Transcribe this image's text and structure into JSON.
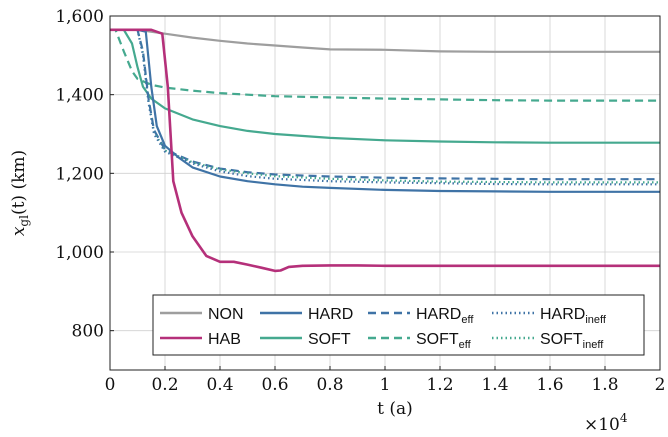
{
  "chart_data": {
    "type": "line",
    "xlabel": "t (a)",
    "ylabel": "x_gl(t) (km)",
    "x_multiplier_label": "×10",
    "x_multiplier_exp": "4",
    "xlim": [
      0,
      20000
    ],
    "ylim": [
      700,
      1600
    ],
    "grid": true,
    "legend_position": "bottom-center",
    "x_ticks": [
      0,
      2000,
      4000,
      6000,
      8000,
      10000,
      12000,
      14000,
      16000,
      18000,
      20000
    ],
    "x_tick_labels": [
      "0",
      "0.2",
      "0.4",
      "0.6",
      "0.8",
      "1",
      "1.2",
      "1.4",
      "1.6",
      "1.8",
      "2"
    ],
    "y_ticks": [
      800,
      1000,
      1200,
      1400,
      1600
    ],
    "y_tick_labels": [
      "800",
      "1,000",
      "1,200",
      "1,400",
      "1,600"
    ],
    "series": [
      {
        "name": "NON",
        "color": "#9e9e9e",
        "style": "solid",
        "x": [
          0,
          1000,
          2000,
          3000,
          4000,
          5000,
          6000,
          7000,
          8000,
          10000,
          12000,
          14000,
          16000,
          18000,
          20000
        ],
        "y": [
          1565,
          1565,
          1555,
          1545,
          1537,
          1530,
          1525,
          1520,
          1515,
          1514,
          1510,
          1509,
          1509,
          1509,
          1509
        ]
      },
      {
        "name": "HAB",
        "color": "#b5307a",
        "style": "solid",
        "x": [
          0,
          1000,
          1500,
          1900,
          2100,
          2300,
          2600,
          3000,
          3500,
          4000,
          4500,
          5000,
          5500,
          6000,
          6200,
          6500,
          7000,
          8000,
          9000,
          10000,
          12000,
          14000,
          16000,
          18000,
          20000
        ],
        "y": [
          1565,
          1565,
          1565,
          1555,
          1420,
          1180,
          1100,
          1040,
          990,
          975,
          975,
          968,
          960,
          952,
          953,
          962,
          965,
          966,
          966,
          965,
          965,
          965,
          965,
          965,
          965
        ]
      },
      {
        "name": "HARD",
        "color": "#3f73a6",
        "style": "solid",
        "x": [
          0,
          1000,
          1300,
          1500,
          1700,
          2000,
          2500,
          3000,
          4000,
          5000,
          6000,
          7000,
          8000,
          10000,
          12000,
          14000,
          16000,
          18000,
          20000
        ],
        "y": [
          1565,
          1565,
          1560,
          1420,
          1320,
          1270,
          1240,
          1215,
          1192,
          1180,
          1172,
          1166,
          1163,
          1158,
          1155,
          1154,
          1153,
          1153,
          1153
        ]
      },
      {
        "name": "SOFT",
        "color": "#45a98f",
        "style": "solid",
        "x": [
          0,
          500,
          800,
          1000,
          1200,
          1500,
          2000,
          3000,
          4000,
          5000,
          6000,
          8000,
          10000,
          12000,
          14000,
          16000,
          18000,
          20000
        ],
        "y": [
          1565,
          1565,
          1530,
          1470,
          1420,
          1390,
          1365,
          1337,
          1320,
          1308,
          1300,
          1290,
          1284,
          1281,
          1279,
          1278,
          1278,
          1278
        ]
      },
      {
        "name": "HARD_eff",
        "color": "#3f73a6",
        "style": "dashed",
        "x": [
          0,
          1000,
          1200,
          1400,
          1600,
          2000,
          3000,
          4000,
          5000,
          6000,
          8000,
          10000,
          12000,
          14000,
          16000,
          18000,
          20000
        ],
        "y": [
          1565,
          1565,
          1510,
          1390,
          1310,
          1260,
          1230,
          1212,
          1203,
          1197,
          1192,
          1189,
          1187,
          1186,
          1185,
          1185,
          1185
        ]
      },
      {
        "name": "SOFT_eff",
        "color": "#45a98f",
        "style": "dashed",
        "x": [
          0,
          200,
          500,
          800,
          1000,
          1500,
          2000,
          3000,
          4000,
          5000,
          6000,
          8000,
          10000,
          12000,
          14000,
          16000,
          18000,
          20000
        ],
        "y": [
          1565,
          1565,
          1510,
          1460,
          1440,
          1425,
          1418,
          1410,
          1404,
          1400,
          1396,
          1393,
          1390,
          1388,
          1386,
          1385,
          1385,
          1385
        ]
      },
      {
        "name": "HARD_ineff",
        "color": "#3f73a6",
        "style": "dotted",
        "x": [
          0,
          1000,
          1200,
          1400,
          1600,
          2000,
          3000,
          4000,
          5000,
          6000,
          8000,
          10000,
          12000,
          14000,
          16000,
          18000,
          20000
        ],
        "y": [
          1565,
          1565,
          1500,
          1380,
          1300,
          1255,
          1225,
          1205,
          1193,
          1186,
          1180,
          1177,
          1175,
          1173,
          1172,
          1172,
          1172
        ]
      },
      {
        "name": "SOFT_ineff",
        "color": "#45a98f",
        "style": "dotted",
        "x": [
          0,
          1000,
          1200,
          1400,
          1600,
          2000,
          3000,
          4000,
          5000,
          6000,
          8000,
          10000,
          12000,
          14000,
          16000,
          18000,
          20000
        ],
        "y": [
          1565,
          1565,
          1505,
          1385,
          1305,
          1258,
          1228,
          1210,
          1200,
          1193,
          1186,
          1182,
          1179,
          1178,
          1177,
          1177,
          1177
        ]
      }
    ],
    "legend": [
      {
        "base": "NON",
        "sub": "",
        "series": "NON"
      },
      {
        "base": "HARD",
        "sub": "",
        "series": "HARD"
      },
      {
        "base": "HARD",
        "sub": "eff",
        "series": "HARD_eff"
      },
      {
        "base": "HARD",
        "sub": "ineff",
        "series": "HARD_ineff"
      },
      {
        "base": "HAB",
        "sub": "",
        "series": "HAB"
      },
      {
        "base": "SOFT",
        "sub": "",
        "series": "SOFT"
      },
      {
        "base": "SOFT",
        "sub": "eff",
        "series": "SOFT_eff"
      },
      {
        "base": "SOFT",
        "sub": "ineff",
        "series": "SOFT_ineff"
      }
    ]
  }
}
